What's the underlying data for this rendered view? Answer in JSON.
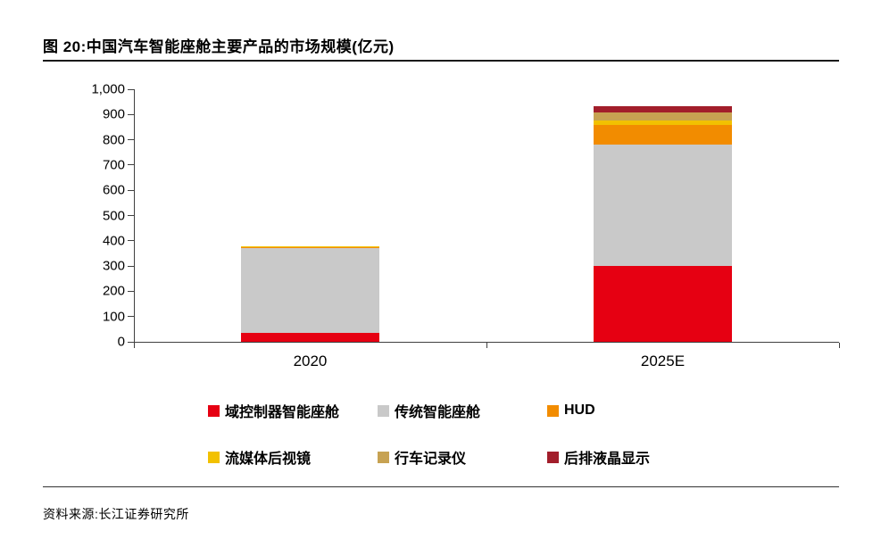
{
  "header": {
    "title": "图 20:中国汽车智能座舱主要产品的市场规模(亿元)"
  },
  "footer": {
    "source": "资料来源:长江证券研究所"
  },
  "chart_data": {
    "type": "bar",
    "stacked": true,
    "title": "图 20:中国汽车智能座舱主要产品的市场规模(亿元)",
    "categories": [
      "2020",
      "2025E"
    ],
    "series": [
      {
        "name": "域控制器智能座舱",
        "color": "#e60012",
        "values": [
          35,
          300
        ]
      },
      {
        "name": "传统智能座舱",
        "color": "#c9c9c9",
        "values": [
          335,
          480
        ]
      },
      {
        "name": "HUD",
        "color": "#f28c00",
        "values": [
          6,
          80
        ]
      },
      {
        "name": "流媒体后视镜",
        "color": "#f2c100",
        "values": [
          1,
          15
        ]
      },
      {
        "name": "行车记录仪",
        "color": "#c7a252",
        "values": [
          2,
          32
        ]
      },
      {
        "name": "后排液晶显示",
        "color": "#a21e2b",
        "values": [
          1,
          25
        ]
      }
    ],
    "ylim": [
      0,
      1000
    ],
    "ytick_labels": [
      "0",
      "100",
      "200",
      "300",
      "400",
      "500",
      "600",
      "700",
      "800",
      "900",
      "1,000"
    ],
    "xlabel": "",
    "ylabel": "",
    "grid": false,
    "legend_position": "bottom"
  }
}
